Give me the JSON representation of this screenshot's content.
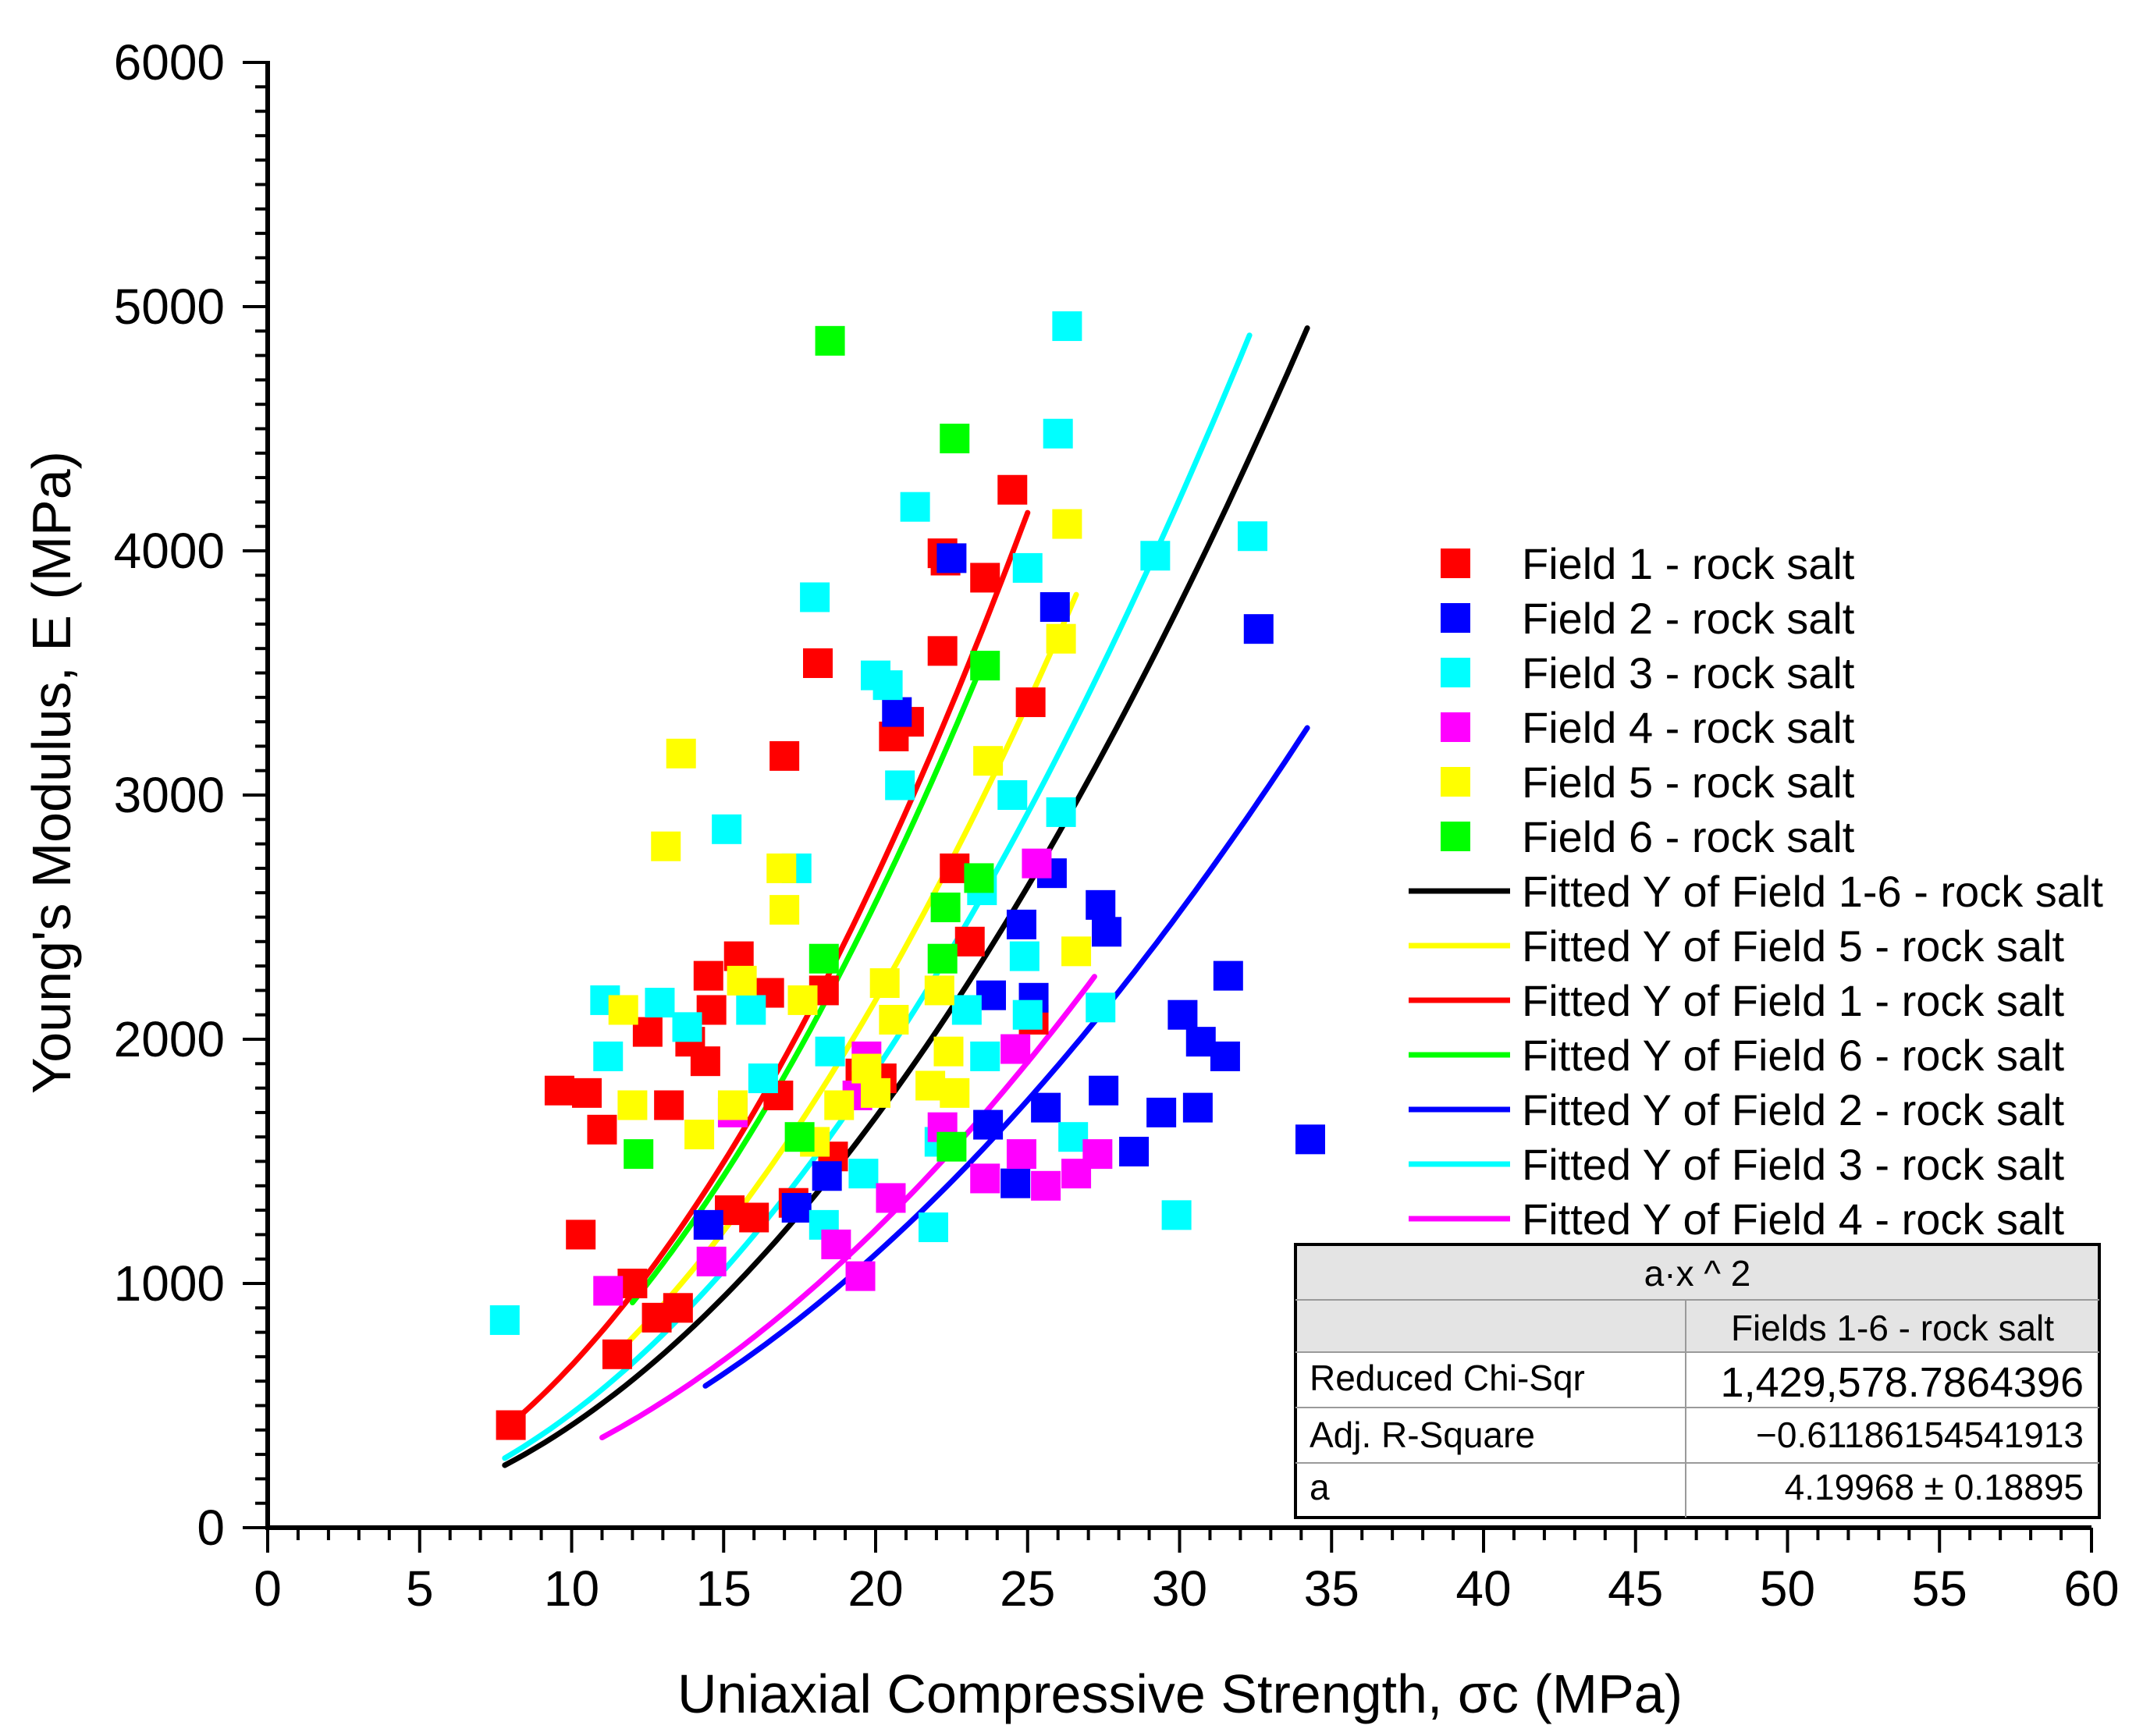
{
  "chart_data": {
    "type": "scatter",
    "xlabel": "Uniaxial Compressive Strength, σc (MPa)",
    "ylabel": "Young's Modulus, E (MPa)",
    "xlim": [
      0,
      60
    ],
    "ylim": [
      0,
      6000
    ],
    "xticks": [
      "0",
      "5",
      "10",
      "15",
      "20",
      "25",
      "30",
      "35",
      "40",
      "45",
      "50",
      "55",
      "60"
    ],
    "yticks": [
      "0",
      "1000",
      "2000",
      "3000",
      "4000",
      "5000",
      "6000"
    ],
    "series": [
      {
        "name": "Field 1 - rock salt",
        "color": "#ff0000",
        "points": [
          [
            8,
            420
          ],
          [
            9.6,
            1790
          ],
          [
            10.3,
            1200
          ],
          [
            10.5,
            1780
          ],
          [
            11.0,
            1630
          ],
          [
            11.5,
            710
          ],
          [
            12.0,
            1000
          ],
          [
            12.5,
            2030
          ],
          [
            12.8,
            860
          ],
          [
            13.2,
            1730
          ],
          [
            13.5,
            900
          ],
          [
            13.9,
            1990
          ],
          [
            14.4,
            1910
          ],
          [
            14.5,
            2260
          ],
          [
            14.6,
            2120
          ],
          [
            15.2,
            1300
          ],
          [
            15.5,
            2340
          ],
          [
            16.0,
            1270
          ],
          [
            16.5,
            2190
          ],
          [
            16.8,
            1770
          ],
          [
            17.0,
            3160
          ],
          [
            17.3,
            1330
          ],
          [
            18.1,
            3540
          ],
          [
            18.3,
            2200
          ],
          [
            18.6,
            1520
          ],
          [
            19.5,
            1860
          ],
          [
            20.2,
            1840
          ],
          [
            20.6,
            3240
          ],
          [
            21.1,
            3300
          ],
          [
            22.2,
            3590
          ],
          [
            22.2,
            3990
          ],
          [
            22.3,
            3960
          ],
          [
            22.6,
            2700
          ],
          [
            23.1,
            2400
          ],
          [
            23.6,
            3890
          ],
          [
            24.5,
            4250
          ],
          [
            25.1,
            3380
          ],
          [
            25.2,
            2080
          ]
        ]
      },
      {
        "name": "Field 2 - rock salt",
        "color": "#0000ff",
        "points": [
          [
            14.5,
            1240
          ],
          [
            17.4,
            1310
          ],
          [
            18.4,
            1440
          ],
          [
            20.7,
            3340
          ],
          [
            22.5,
            3970
          ],
          [
            23.7,
            1650
          ],
          [
            23.8,
            2180
          ],
          [
            24.6,
            1410
          ],
          [
            24.8,
            2470
          ],
          [
            25.2,
            2170
          ],
          [
            25.6,
            1720
          ],
          [
            25.8,
            2680
          ],
          [
            25.9,
            3770
          ],
          [
            27.4,
            2550
          ],
          [
            27.5,
            1790
          ],
          [
            27.6,
            2440
          ],
          [
            28.5,
            1540
          ],
          [
            29.4,
            1700
          ],
          [
            30.1,
            2100
          ],
          [
            30.6,
            1720
          ],
          [
            30.7,
            1990
          ],
          [
            31.5,
            1930
          ],
          [
            31.6,
            2260
          ],
          [
            32.6,
            3680
          ],
          [
            34.3,
            1590
          ]
        ]
      },
      {
        "name": "Field 3 - rock salt",
        "color": "#00ffff",
        "points": [
          [
            7.8,
            850
          ],
          [
            11.1,
            2160
          ],
          [
            11.2,
            1930
          ],
          [
            12.9,
            2150
          ],
          [
            13.8,
            2050
          ],
          [
            15.1,
            2860
          ],
          [
            15.9,
            2120
          ],
          [
            16.3,
            1840
          ],
          [
            17.4,
            2700
          ],
          [
            18.0,
            3810
          ],
          [
            18.3,
            1240
          ],
          [
            18.5,
            1950
          ],
          [
            19.6,
            1450
          ],
          [
            20.0,
            3490
          ],
          [
            20.4,
            3450
          ],
          [
            20.8,
            3040
          ],
          [
            21.3,
            4180
          ],
          [
            21.9,
            1230
          ],
          [
            22.1,
            1580
          ],
          [
            23.0,
            2120
          ],
          [
            23.5,
            2610
          ],
          [
            23.6,
            1930
          ],
          [
            24.5,
            3000
          ],
          [
            24.9,
            2340
          ],
          [
            25.0,
            3930
          ],
          [
            25.0,
            2100
          ],
          [
            26.0,
            4480
          ],
          [
            26.1,
            2930
          ],
          [
            26.3,
            4920
          ],
          [
            26.5,
            1600
          ],
          [
            27.4,
            2130
          ],
          [
            29.2,
            3980
          ],
          [
            29.9,
            1280
          ],
          [
            32.4,
            4060
          ]
        ]
      },
      {
        "name": "Field 4 - rock salt",
        "color": "#ff00ff",
        "points": [
          [
            11.2,
            970
          ],
          [
            14.6,
            1090
          ],
          [
            15.3,
            1700
          ],
          [
            18.7,
            1160
          ],
          [
            19.4,
            1770
          ],
          [
            19.5,
            1030
          ],
          [
            19.7,
            1930
          ],
          [
            20.5,
            1350
          ],
          [
            22.2,
            1640
          ],
          [
            23.6,
            1430
          ],
          [
            24.6,
            1960
          ],
          [
            24.8,
            1530
          ],
          [
            25.3,
            2720
          ],
          [
            25.6,
            1400
          ],
          [
            26.6,
            1450
          ],
          [
            27.3,
            1530
          ]
        ]
      },
      {
        "name": "Field 5 - rock salt",
        "color": "#ffff00",
        "points": [
          [
            11.7,
            2120
          ],
          [
            12.0,
            1730
          ],
          [
            13.1,
            2790
          ],
          [
            13.6,
            3170
          ],
          [
            14.2,
            1610
          ],
          [
            15.3,
            1730
          ],
          [
            15.6,
            2240
          ],
          [
            16.9,
            2700
          ],
          [
            17.0,
            2530
          ],
          [
            17.6,
            2160
          ],
          [
            18.0,
            1580
          ],
          [
            18.8,
            1730
          ],
          [
            19.7,
            1880
          ],
          [
            20.0,
            1780
          ],
          [
            20.3,
            2230
          ],
          [
            20.6,
            2080
          ],
          [
            21.8,
            1810
          ],
          [
            22.1,
            2200
          ],
          [
            22.4,
            1950
          ],
          [
            22.6,
            1780
          ],
          [
            23.7,
            3140
          ],
          [
            26.1,
            3640
          ],
          [
            26.3,
            4110
          ],
          [
            26.6,
            2360
          ]
        ]
      },
      {
        "name": "Field 6 - rock salt",
        "color": "#00ff00",
        "points": [
          [
            12.2,
            1530
          ],
          [
            17.5,
            1600
          ],
          [
            18.3,
            2330
          ],
          [
            18.5,
            4860
          ],
          [
            22.2,
            2330
          ],
          [
            22.3,
            2540
          ],
          [
            22.5,
            1560
          ],
          [
            22.6,
            4460
          ],
          [
            23.4,
            2660
          ],
          [
            23.6,
            3530
          ]
        ]
      }
    ],
    "fits": [
      {
        "name": "Fitted Y of Field 1-6 - rock salt",
        "color": "#000000",
        "a": 4.19968,
        "x": [
          7.8,
          34.2
        ]
      },
      {
        "name": "Fitted Y of Field 5 - rock salt",
        "color": "#ffff00",
        "a": 5.4,
        "x": [
          11.8,
          26.6
        ]
      },
      {
        "name": "Fitted Y of Field 1 - rock salt",
        "color": "#ff0000",
        "a": 6.65,
        "x": [
          7.9,
          25.0
        ]
      },
      {
        "name": "Fitted Y of Field 6 - rock salt",
        "color": "#00ff00",
        "a": 6.4,
        "x": [
          12.0,
          23.4
        ]
      },
      {
        "name": "Fitted Y of Field 2 - rock salt",
        "color": "#0000ff",
        "a": 2.8,
        "x": [
          14.4,
          34.2
        ]
      },
      {
        "name": "Fitted Y of Field 3 - rock salt",
        "color": "#00ffff",
        "a": 4.68,
        "x": [
          7.8,
          32.3
        ]
      },
      {
        "name": "Fitted Y of Field 4 - rock salt",
        "color": "#ff00ff",
        "a": 3.05,
        "x": [
          11.0,
          27.2
        ]
      }
    ],
    "fit_table": {
      "title": "a·x ^ 2",
      "column": "Fields 1-6 - rock salt",
      "rows": [
        {
          "label": "Reduced Chi-Sqr",
          "value": "1,429,578.7864396"
        },
        {
          "label": "Adj. R-Square",
          "value": "−0.61186154541913"
        },
        {
          "label": "a",
          "value": "4.19968 ± 0.18895"
        }
      ]
    }
  }
}
